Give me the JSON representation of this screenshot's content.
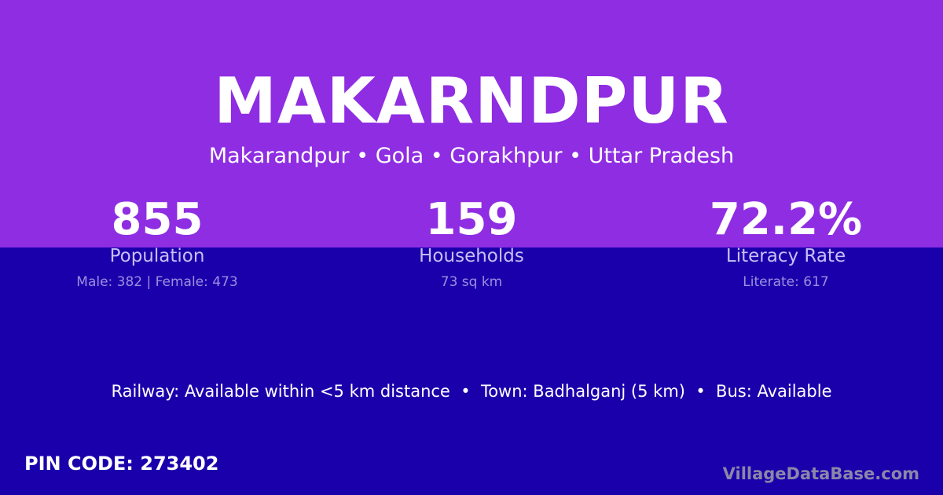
{
  "colors": {
    "top_bg": "#8e2de2",
    "bottom_bg": "#1a00ab"
  },
  "title": "MAKARNDPUR",
  "subtitle": "Makarandpur • Gola • Gorakhpur • Uttar Pradesh",
  "stats": [
    {
      "value": "855",
      "label": "Population",
      "detail": "Male: 382 | Female: 473"
    },
    {
      "value": "159",
      "label": "Households",
      "detail": "73 sq km"
    },
    {
      "value": "72.2%",
      "label": "Literacy Rate",
      "detail": "Literate: 617"
    }
  ],
  "info": "Railway: Available within <5 km distance  •  Town: Badhalganj (5 km)  •  Bus: Available",
  "pin": "PIN CODE: 273402",
  "brand": "VillageDataBase.com"
}
